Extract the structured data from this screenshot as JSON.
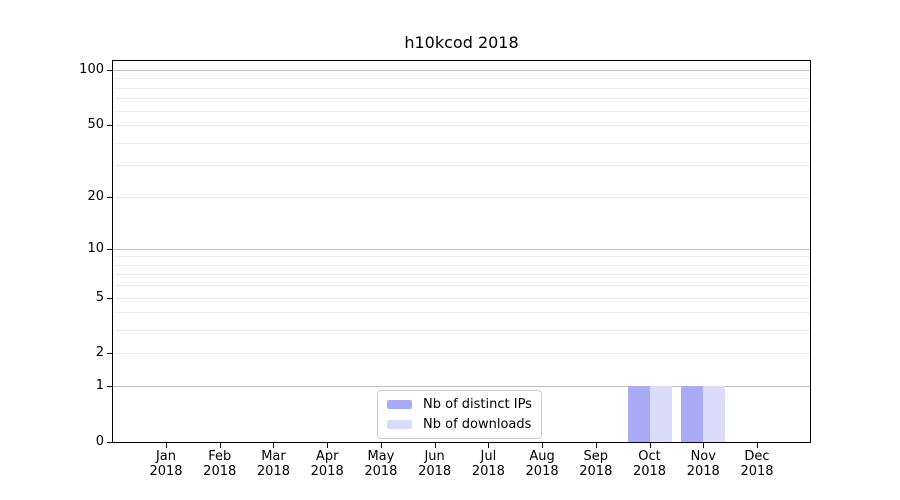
{
  "chart_data": {
    "type": "bar",
    "title": "h10kcod 2018",
    "x_tick_labels": [
      {
        "month": "Jan",
        "year": "2018"
      },
      {
        "month": "Feb",
        "year": "2018"
      },
      {
        "month": "Mar",
        "year": "2018"
      },
      {
        "month": "Apr",
        "year": "2018"
      },
      {
        "month": "May",
        "year": "2018"
      },
      {
        "month": "Jun",
        "year": "2018"
      },
      {
        "month": "Jul",
        "year": "2018"
      },
      {
        "month": "Aug",
        "year": "2018"
      },
      {
        "month": "Sep",
        "year": "2018"
      },
      {
        "month": "Oct",
        "year": "2018"
      },
      {
        "month": "Nov",
        "year": "2018"
      },
      {
        "month": "Dec",
        "year": "2018"
      }
    ],
    "series": [
      {
        "name": "Nb of distinct IPs",
        "color": "#aaabf6",
        "values": [
          0,
          0,
          0,
          0,
          0,
          0,
          0,
          0,
          0,
          1,
          1,
          0
        ]
      },
      {
        "name": "Nb of downloads",
        "color": "#dbdcf9",
        "values": [
          0,
          0,
          0,
          0,
          0,
          0,
          0,
          0,
          0,
          1,
          1,
          0
        ]
      }
    ],
    "yscale": "log1p",
    "ylim": [
      0,
      112
    ],
    "ytick_values": [
      0,
      1,
      2,
      5,
      10,
      20,
      50,
      100
    ],
    "ytick_labels": [
      "0",
      "1",
      "2",
      "5",
      "10",
      "20",
      "50",
      "100"
    ],
    "major_gridlines": [
      1,
      10,
      100
    ],
    "minor_gridlines": [
      2,
      3,
      4,
      5,
      6,
      7,
      8,
      9,
      20,
      30,
      40,
      50,
      60,
      70,
      80,
      90
    ],
    "legend": {
      "entries": [
        "Nb of distinct IPs",
        "Nb of downloads"
      ],
      "position": "lower-center"
    },
    "colors": {
      "major_grid": "#c0c0c0",
      "minor_grid": "#ebebeb",
      "spine": "#000000",
      "text": "#000000",
      "background": "#ffffff"
    }
  }
}
